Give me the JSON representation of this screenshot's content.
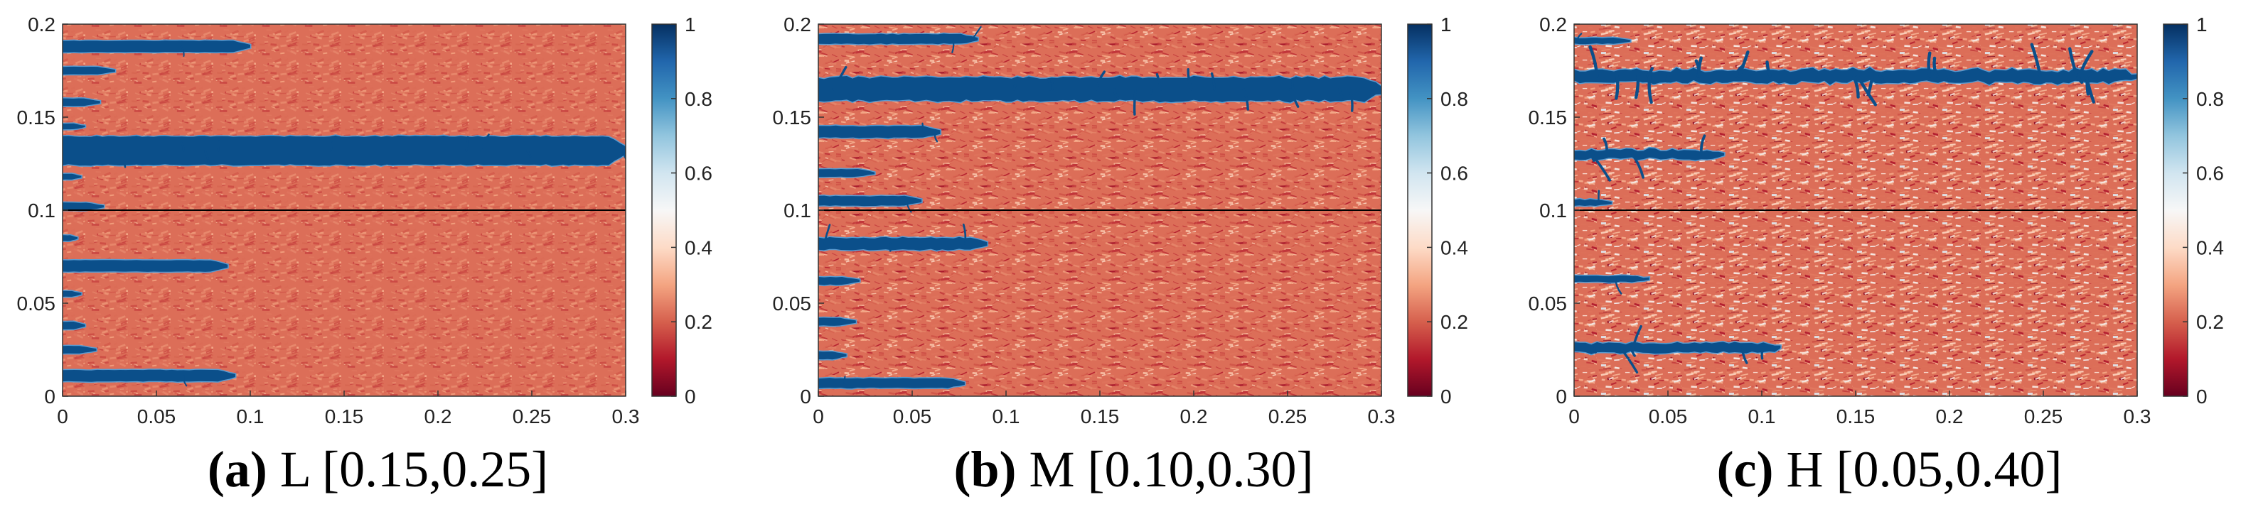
{
  "colors": {
    "background_field": "#d9654f",
    "crack": "#0b4f8a",
    "crack_edge": "#5a9bd0",
    "midline": "#000000"
  },
  "chart_data": [
    {
      "type": "heatmap",
      "caption_letter": "(a)",
      "caption_text": "L [0.15,0.25]",
      "xlim": [
        0,
        0.3
      ],
      "ylim": [
        0,
        0.2
      ],
      "xticks": [
        "0",
        "0.05",
        "0.1",
        "0.15",
        "0.2",
        "0.25",
        "0.3"
      ],
      "yticks": [
        "0",
        "0.05",
        "0.1",
        "0.15",
        "0.2"
      ],
      "colorbar": {
        "range": [
          0,
          1
        ],
        "ticks": [
          "0",
          "0.2",
          "0.4",
          "0.6",
          "0.8",
          "1"
        ]
      },
      "horizontal_line_y": 0.1,
      "noise_level": 0.25,
      "cracks": [
        {
          "y": 0.188,
          "x_end": 0.1,
          "thickness": 0.003,
          "rough": 0.3
        },
        {
          "y": 0.175,
          "x_end": 0.028,
          "thickness": 0.002,
          "rough": 0.2
        },
        {
          "y": 0.158,
          "x_end": 0.02,
          "thickness": 0.002,
          "rough": 0.2
        },
        {
          "y": 0.145,
          "x_end": 0.012,
          "thickness": 0.0015,
          "rough": 0.2
        },
        {
          "y": 0.132,
          "x_end": 0.3,
          "thickness": 0.0075,
          "rough": 0.9
        },
        {
          "y": 0.118,
          "x_end": 0.01,
          "thickness": 0.0015,
          "rough": 0.2
        },
        {
          "y": 0.102,
          "x_end": 0.022,
          "thickness": 0.002,
          "rough": 0.2
        },
        {
          "y": 0.085,
          "x_end": 0.008,
          "thickness": 0.0015,
          "rough": 0.2
        },
        {
          "y": 0.07,
          "x_end": 0.088,
          "thickness": 0.003,
          "rough": 0.3
        },
        {
          "y": 0.055,
          "x_end": 0.01,
          "thickness": 0.0015,
          "rough": 0.2
        },
        {
          "y": 0.038,
          "x_end": 0.012,
          "thickness": 0.002,
          "rough": 0.2
        },
        {
          "y": 0.025,
          "x_end": 0.018,
          "thickness": 0.002,
          "rough": 0.2
        },
        {
          "y": 0.011,
          "x_end": 0.092,
          "thickness": 0.003,
          "rough": 0.4
        }
      ]
    },
    {
      "type": "heatmap",
      "caption_letter": "(b)",
      "caption_text": "M [0.10,0.30]",
      "xlim": [
        0,
        0.3
      ],
      "ylim": [
        0,
        0.2
      ],
      "xticks": [
        "0",
        "0.05",
        "0.1",
        "0.15",
        "0.2",
        "0.25",
        "0.3"
      ],
      "yticks": [
        "0",
        "0.05",
        "0.1",
        "0.15",
        "0.2"
      ],
      "colorbar": {
        "range": [
          0,
          1
        ],
        "ticks": [
          "0",
          "0.2",
          "0.4",
          "0.6",
          "0.8",
          "1"
        ]
      },
      "horizontal_line_y": 0.1,
      "noise_level": 0.55,
      "cracks": [
        {
          "y": 0.192,
          "x_end": 0.085,
          "thickness": 0.0025,
          "rough": 0.6
        },
        {
          "y": 0.165,
          "x_end": 0.3,
          "thickness": 0.006,
          "rough": 1.6
        },
        {
          "y": 0.142,
          "x_end": 0.065,
          "thickness": 0.003,
          "rough": 0.7
        },
        {
          "y": 0.12,
          "x_end": 0.03,
          "thickness": 0.002,
          "rough": 0.4
        },
        {
          "y": 0.105,
          "x_end": 0.055,
          "thickness": 0.0025,
          "rough": 0.5
        },
        {
          "y": 0.082,
          "x_end": 0.09,
          "thickness": 0.003,
          "rough": 1.0
        },
        {
          "y": 0.062,
          "x_end": 0.022,
          "thickness": 0.002,
          "rough": 0.4
        },
        {
          "y": 0.04,
          "x_end": 0.02,
          "thickness": 0.002,
          "rough": 0.4
        },
        {
          "y": 0.022,
          "x_end": 0.015,
          "thickness": 0.002,
          "rough": 0.4
        },
        {
          "y": 0.007,
          "x_end": 0.078,
          "thickness": 0.0025,
          "rough": 0.5
        }
      ]
    },
    {
      "type": "heatmap",
      "caption_letter": "(c)",
      "caption_text": "H [0.05,0.40]",
      "xlim": [
        0,
        0.3
      ],
      "ylim": [
        0,
        0.2
      ],
      "xticks": [
        "0",
        "0.05",
        "0.1",
        "0.15",
        "0.2",
        "0.25",
        "0.3"
      ],
      "yticks": [
        "0",
        "0.05",
        "0.1",
        "0.15",
        "0.2"
      ],
      "colorbar": {
        "range": [
          0,
          1
        ],
        "ticks": [
          "0",
          "0.2",
          "0.4",
          "0.6",
          "0.8",
          "1"
        ]
      },
      "horizontal_line_y": 0.1,
      "noise_level": 0.85,
      "cracks": [
        {
          "y": 0.191,
          "x_end": 0.03,
          "thickness": 0.0015,
          "rough": 0.6
        },
        {
          "y": 0.172,
          "x_end": 0.3,
          "thickness": 0.0028,
          "rough": 2.4
        },
        {
          "y": 0.13,
          "x_end": 0.08,
          "thickness": 0.002,
          "rough": 1.8
        },
        {
          "y": 0.104,
          "x_end": 0.02,
          "thickness": 0.0015,
          "rough": 0.8
        },
        {
          "y": 0.063,
          "x_end": 0.04,
          "thickness": 0.0015,
          "rough": 0.8
        },
        {
          "y": 0.026,
          "x_end": 0.11,
          "thickness": 0.0022,
          "rough": 1.6
        }
      ]
    }
  ]
}
